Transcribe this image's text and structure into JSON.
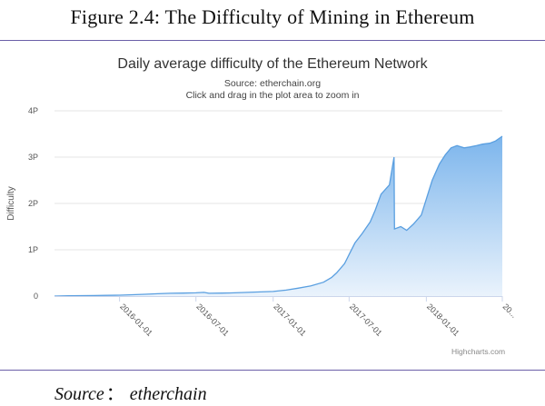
{
  "figure": {
    "title": "Figure 2.4: The Difficulty of Mining in Ethereum",
    "source_label": "Source",
    "source_colon": "：",
    "source_value": "etherchain"
  },
  "chart_data": {
    "type": "area",
    "title": "Daily average difficulty of the Ethereum Network",
    "subtitle_lines": [
      "Source: etherchain.org",
      "Click and drag in the plot area to zoom in"
    ],
    "xlabel": "",
    "ylabel": "Difficulty",
    "y_ticks": [
      {
        "value": 0,
        "label": "0"
      },
      {
        "value": 1,
        "label": "1P"
      },
      {
        "value": 2,
        "label": "2P"
      },
      {
        "value": 3,
        "label": "3P"
      },
      {
        "value": 4,
        "label": "4P"
      }
    ],
    "ylim": [
      0,
      4
    ],
    "x_ticks": [
      "2016-01-01",
      "2016-07-01",
      "2017-01-01",
      "2017-07-01",
      "2018-01-01",
      "20..."
    ],
    "xlim": [
      "2015-07-30",
      "2018-07-01"
    ],
    "series": [
      {
        "x": [
          "2015-07-30",
          "2015-09-01",
          "2015-10-01",
          "2015-11-01",
          "2015-12-01",
          "2016-01-01",
          "2016-02-01",
          "2016-03-01",
          "2016-04-01",
          "2016-05-01",
          "2016-06-01",
          "2016-07-01",
          "2016-07-20",
          "2016-08-01",
          "2016-09-01",
          "2016-10-01",
          "2016-11-01",
          "2016-12-01",
          "2017-01-01",
          "2017-02-01",
          "2017-03-01",
          "2017-04-01",
          "2017-05-01",
          "2017-05-20",
          "2017-06-01",
          "2017-06-20",
          "2017-07-01",
          "2017-07-15",
          "2017-08-01",
          "2017-08-20",
          "2017-09-01",
          "2017-09-15",
          "2017-09-25",
          "2017-10-05",
          "2017-10-16",
          "2017-10-17",
          "2017-11-01",
          "2017-11-15",
          "2017-12-01",
          "2017-12-20",
          "2018-01-01",
          "2018-01-15",
          "2018-02-01",
          "2018-02-15",
          "2018-03-01",
          "2018-03-15",
          "2018-04-01",
          "2018-04-15",
          "2018-05-01",
          "2018-05-15",
          "2018-06-01",
          "2018-06-15",
          "2018-07-01"
        ],
        "values": [
          0.0,
          0.005,
          0.01,
          0.012,
          0.015,
          0.02,
          0.03,
          0.04,
          0.05,
          0.06,
          0.065,
          0.07,
          0.08,
          0.06,
          0.065,
          0.07,
          0.08,
          0.09,
          0.1,
          0.13,
          0.17,
          0.22,
          0.3,
          0.4,
          0.5,
          0.7,
          0.9,
          1.15,
          1.35,
          1.6,
          1.85,
          2.2,
          2.3,
          2.4,
          3.0,
          1.45,
          1.5,
          1.42,
          1.55,
          1.75,
          2.1,
          2.5,
          2.85,
          3.05,
          3.2,
          3.25,
          3.2,
          3.22,
          3.25,
          3.28,
          3.3,
          3.35,
          3.45
        ]
      }
    ],
    "colors": {
      "line": "#5a9fe0",
      "area_top": "#7cb5ec",
      "area_bottom": "#eaf3fc",
      "grid": "#e6e6e6",
      "axis": "#ccd6eb"
    },
    "grid": true,
    "legend": "none",
    "credits": "Highcharts.com"
  }
}
